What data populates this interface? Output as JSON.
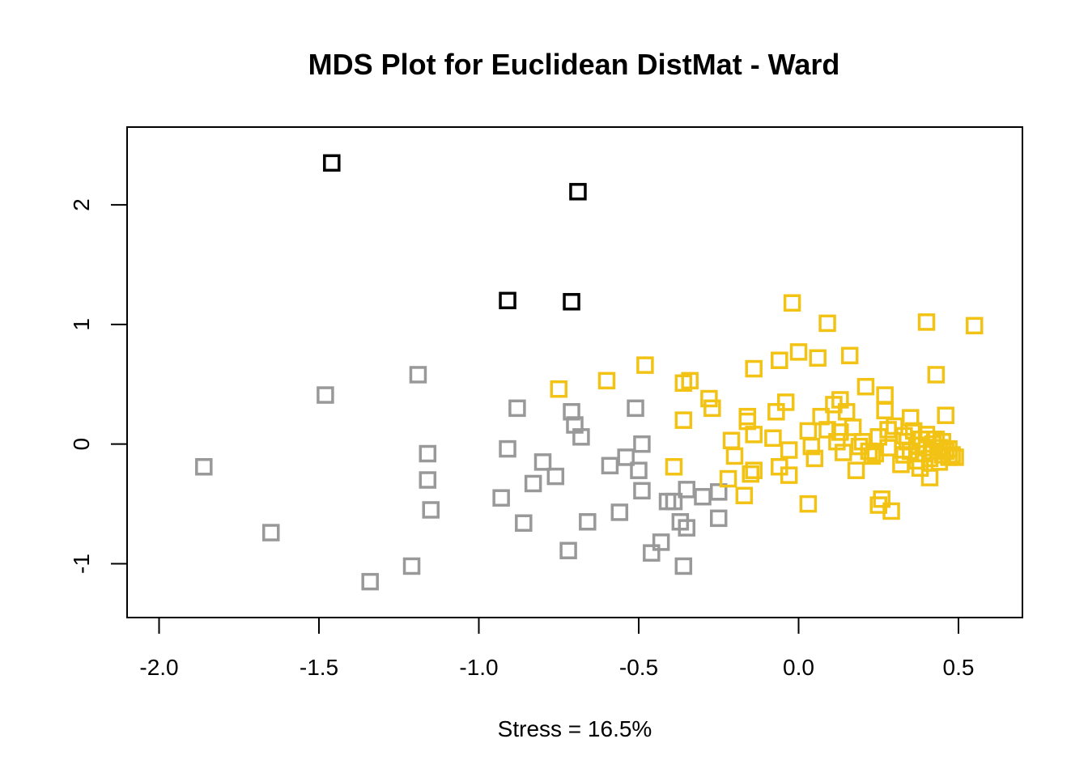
{
  "chart_data": {
    "type": "scatter",
    "title": "MDS Plot for Euclidean DistMat - Ward",
    "xlabel": "Stress  =  16.5%",
    "ylabel": "",
    "xlim": [
      -2.1,
      0.7
    ],
    "ylim": [
      -1.45,
      2.65
    ],
    "x_ticks": [
      -2.0,
      -1.5,
      -1.0,
      -0.5,
      0.0,
      0.5
    ],
    "x_tick_labels": [
      "-2.0",
      "-1.5",
      "-1.0",
      "-0.5",
      "0.0",
      "0.5"
    ],
    "y_ticks": [
      -1,
      0,
      1,
      2
    ],
    "y_tick_labels": [
      "-1",
      "0",
      "1",
      "2"
    ],
    "grid": false,
    "marker": "open-square",
    "series": [
      {
        "color": "#000000",
        "points": [
          [
            -1.46,
            2.35
          ],
          [
            -0.69,
            2.11
          ],
          [
            -0.91,
            1.2
          ],
          [
            -0.71,
            1.19
          ]
        ]
      },
      {
        "color": "#999999",
        "points": [
          [
            -1.86,
            -0.19
          ],
          [
            -1.65,
            -0.74
          ],
          [
            -1.48,
            0.41
          ],
          [
            -1.34,
            -1.15
          ],
          [
            -1.21,
            -1.02
          ],
          [
            -1.19,
            0.58
          ],
          [
            -1.16,
            -0.08
          ],
          [
            -1.16,
            -0.3
          ],
          [
            -1.15,
            -0.55
          ],
          [
            -0.93,
            -0.45
          ],
          [
            -0.91,
            -0.04
          ],
          [
            -0.88,
            0.3
          ],
          [
            -0.86,
            -0.66
          ],
          [
            -0.83,
            -0.33
          ],
          [
            -0.8,
            -0.15
          ],
          [
            -0.76,
            -0.27
          ],
          [
            -0.72,
            -0.89
          ],
          [
            -0.71,
            0.27
          ],
          [
            -0.7,
            0.16
          ],
          [
            -0.68,
            0.06
          ],
          [
            -0.66,
            -0.65
          ],
          [
            -0.59,
            -0.18
          ],
          [
            -0.56,
            -0.57
          ],
          [
            -0.54,
            -0.11
          ],
          [
            -0.51,
            0.3
          ],
          [
            -0.5,
            -0.22
          ],
          [
            -0.49,
            -0.39
          ],
          [
            -0.49,
            0.0
          ],
          [
            -0.46,
            -0.91
          ],
          [
            -0.43,
            -0.82
          ],
          [
            -0.41,
            -0.48
          ],
          [
            -0.39,
            -0.48
          ],
          [
            -0.37,
            -0.65
          ],
          [
            -0.36,
            -1.02
          ],
          [
            -0.35,
            -0.38
          ],
          [
            -0.35,
            -0.7
          ],
          [
            -0.3,
            -0.44
          ],
          [
            -0.25,
            -0.4
          ],
          [
            -0.25,
            -0.62
          ]
        ]
      },
      {
        "color": "#F2C314",
        "points": [
          [
            -0.75,
            0.46
          ],
          [
            -0.6,
            0.53
          ],
          [
            -0.48,
            0.66
          ],
          [
            -0.39,
            -0.19
          ],
          [
            -0.36,
            0.51
          ],
          [
            -0.36,
            0.2
          ],
          [
            -0.34,
            0.53
          ],
          [
            -0.28,
            0.38
          ],
          [
            -0.27,
            0.3
          ],
          [
            -0.22,
            -0.29
          ],
          [
            -0.21,
            0.03
          ],
          [
            -0.2,
            -0.1
          ],
          [
            -0.17,
            -0.43
          ],
          [
            -0.16,
            0.19
          ],
          [
            -0.16,
            0.23
          ],
          [
            -0.15,
            -0.25
          ],
          [
            -0.14,
            0.08
          ],
          [
            -0.14,
            0.63
          ],
          [
            -0.14,
            -0.22
          ],
          [
            -0.08,
            0.05
          ],
          [
            -0.07,
            0.27
          ],
          [
            -0.06,
            0.7
          ],
          [
            -0.06,
            -0.19
          ],
          [
            -0.04,
            0.35
          ],
          [
            -0.03,
            -0.26
          ],
          [
            -0.03,
            -0.05
          ],
          [
            -0.02,
            1.18
          ],
          [
            0.0,
            0.77
          ],
          [
            0.03,
            -0.5
          ],
          [
            0.03,
            0.11
          ],
          [
            0.04,
            -0.02
          ],
          [
            0.05,
            -0.12
          ],
          [
            0.06,
            0.72
          ],
          [
            0.07,
            0.23
          ],
          [
            0.09,
            1.01
          ],
          [
            0.09,
            0.12
          ],
          [
            0.11,
            0.33
          ],
          [
            0.12,
            0.02
          ],
          [
            0.13,
            0.37
          ],
          [
            0.13,
            0.1
          ],
          [
            0.14,
            -0.07
          ],
          [
            0.15,
            0.27
          ],
          [
            0.16,
            0.74
          ],
          [
            0.17,
            0.14
          ],
          [
            0.18,
            -0.22
          ],
          [
            0.19,
            -0.02
          ],
          [
            0.2,
            0.02
          ],
          [
            0.21,
            0.48
          ],
          [
            0.22,
            -0.06
          ],
          [
            0.23,
            -0.1
          ],
          [
            0.24,
            -0.08
          ],
          [
            0.25,
            0.06
          ],
          [
            0.25,
            -0.51
          ],
          [
            0.26,
            -0.46
          ],
          [
            0.27,
            0.28
          ],
          [
            0.27,
            0.41
          ],
          [
            0.28,
            -0.03
          ],
          [
            0.28,
            0.12
          ],
          [
            0.29,
            -0.56
          ],
          [
            0.3,
            0.15
          ],
          [
            0.32,
            -0.17
          ],
          [
            0.33,
            0.07
          ],
          [
            0.33,
            -0.09
          ],
          [
            0.34,
            0.02
          ],
          [
            0.35,
            0.22
          ],
          [
            0.35,
            -0.06
          ],
          [
            0.36,
            0.11
          ],
          [
            0.37,
            -0.14
          ],
          [
            0.37,
            -0.01
          ],
          [
            0.38,
            -0.2
          ],
          [
            0.38,
            0.04
          ],
          [
            0.39,
            -0.08
          ],
          [
            0.4,
            0.08
          ],
          [
            0.4,
            -0.03
          ],
          [
            0.4,
            1.02
          ],
          [
            0.41,
            -0.12
          ],
          [
            0.41,
            -0.28
          ],
          [
            0.42,
            0.0
          ],
          [
            0.42,
            -0.06
          ],
          [
            0.43,
            0.04
          ],
          [
            0.43,
            0.58
          ],
          [
            0.44,
            -0.15
          ],
          [
            0.44,
            -0.03
          ],
          [
            0.45,
            -0.09
          ],
          [
            0.45,
            0.02
          ],
          [
            0.46,
            0.24
          ],
          [
            0.46,
            -0.06
          ],
          [
            0.47,
            -0.11
          ],
          [
            0.47,
            -0.04
          ],
          [
            0.48,
            -0.09
          ],
          [
            0.49,
            -0.11
          ],
          [
            0.55,
            0.99
          ]
        ]
      }
    ]
  }
}
